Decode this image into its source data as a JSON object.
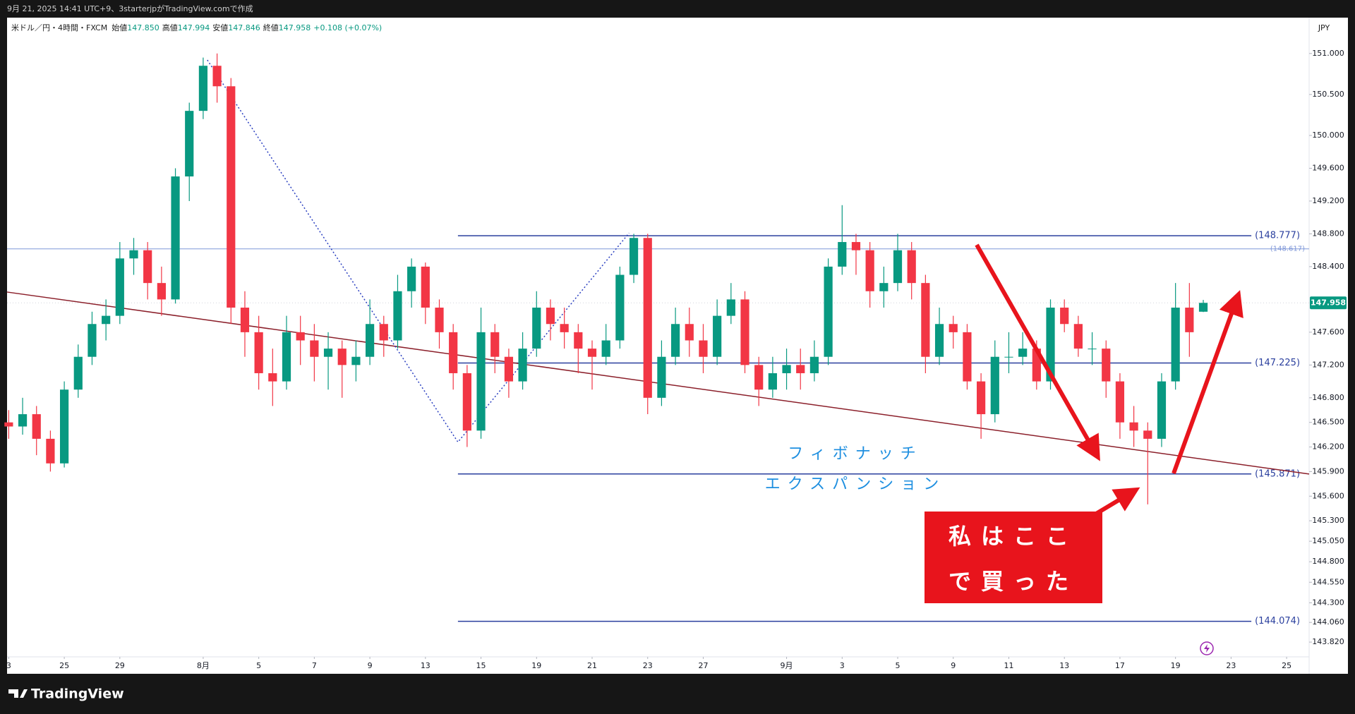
{
  "header": {
    "caption": "9月 21, 2025 14:41 UTC+9、3starterjpがTradingView.comで作成",
    "footer": "TradingView"
  },
  "chart_data": {
    "type": "candlestick",
    "symbol": "米ドル／円・4時間・FXCM",
    "ohlc_legend": [
      {
        "name": "始値",
        "text": "147.850"
      },
      {
        "name": "高値",
        "text": "147.994"
      },
      {
        "name": "安値",
        "text": "147.846"
      },
      {
        "name": "終値",
        "text": "147.958"
      }
    ],
    "change": "+0.108 (+0.07%)",
    "currency": "JPY",
    "up_color": "#089981",
    "down_color": "#f23645",
    "x": [
      0,
      0.5,
      1,
      1.5,
      2,
      2.5,
      3,
      3.5,
      4,
      4.5,
      5,
      5.5,
      6,
      6.5,
      7,
      7.5,
      8,
      8.5,
      9,
      9.5,
      10,
      10.5,
      11,
      11.5,
      12,
      12.5,
      13,
      13.5,
      14,
      14.5,
      15,
      15.5,
      16,
      16.5,
      17,
      17.5,
      18,
      18.5,
      19,
      19.5,
      20,
      20.5,
      21,
      21.5,
      22,
      22.5,
      23,
      23.5,
      24,
      24.5,
      25,
      25.5,
      26,
      26.5,
      27,
      27.5,
      28,
      28.5,
      29,
      29.5,
      30,
      30.5,
      31,
      31.5,
      32,
      32.5,
      33,
      33.5,
      34,
      34.5,
      35,
      35.5,
      36,
      36.5,
      37,
      37.5,
      38,
      38.5,
      39,
      39.5,
      40,
      40.5,
      41,
      41.5,
      42,
      42.5,
      43
    ],
    "open": [
      146.5,
      146.45,
      146.6,
      146.3,
      146.0,
      146.9,
      147.3,
      147.7,
      147.8,
      148.5,
      148.6,
      148.2,
      148.0,
      149.5,
      150.3,
      150.85,
      150.6,
      147.9,
      147.6,
      147.1,
      147.0,
      147.6,
      147.5,
      147.3,
      147.4,
      147.2,
      147.3,
      147.7,
      147.5,
      148.1,
      148.4,
      147.9,
      147.6,
      147.1,
      146.4,
      147.6,
      147.3,
      147.0,
      147.4,
      147.9,
      147.7,
      147.6,
      147.4,
      147.3,
      147.5,
      148.3,
      148.75,
      146.8,
      147.3,
      147.7,
      147.5,
      147.3,
      147.8,
      148.0,
      147.2,
      146.9,
      147.1,
      147.2,
      147.1,
      147.3,
      148.4,
      148.7,
      148.6,
      148.1,
      148.2,
      148.6,
      148.2,
      147.3,
      147.7,
      147.6,
      147.0,
      146.6,
      147.3,
      147.3,
      147.4,
      147.0,
      147.9,
      147.7,
      147.4,
      147.4,
      147.0,
      146.5,
      146.4,
      146.3,
      147.0,
      147.9,
      147.85
    ],
    "high": [
      146.65,
      146.8,
      146.7,
      146.4,
      147.0,
      147.45,
      147.85,
      148.0,
      148.7,
      148.75,
      148.7,
      148.4,
      149.6,
      150.4,
      150.95,
      151.0,
      150.7,
      148.1,
      147.8,
      147.4,
      147.8,
      147.8,
      147.7,
      147.6,
      147.5,
      147.5,
      148.0,
      147.8,
      148.3,
      148.5,
      148.45,
      148.0,
      147.7,
      147.2,
      147.9,
      147.7,
      147.4,
      147.6,
      148.1,
      148.0,
      147.9,
      147.7,
      147.5,
      147.7,
      148.4,
      148.8,
      148.8,
      147.5,
      147.9,
      147.9,
      147.7,
      148.0,
      148.2,
      148.1,
      147.3,
      147.3,
      147.4,
      147.4,
      147.5,
      148.5,
      149.15,
      148.8,
      148.7,
      148.4,
      148.8,
      148.7,
      148.3,
      147.9,
      147.8,
      147.7,
      147.1,
      147.5,
      147.6,
      147.6,
      147.5,
      148.0,
      148.0,
      147.8,
      147.6,
      147.5,
      147.1,
      146.7,
      146.5,
      147.1,
      148.2,
      148.2,
      147.994
    ],
    "low": [
      146.3,
      146.35,
      146.1,
      145.9,
      145.95,
      146.8,
      147.2,
      147.5,
      147.7,
      148.3,
      148.0,
      147.8,
      147.95,
      149.2,
      150.2,
      150.4,
      147.7,
      147.3,
      146.9,
      146.7,
      146.9,
      147.2,
      147.0,
      146.9,
      146.8,
      147.0,
      147.2,
      147.3,
      147.4,
      147.9,
      147.7,
      147.4,
      146.9,
      146.2,
      146.3,
      147.1,
      146.8,
      146.9,
      147.3,
      147.5,
      147.4,
      147.1,
      146.9,
      147.2,
      147.4,
      148.2,
      146.6,
      146.7,
      147.2,
      147.3,
      147.1,
      147.2,
      147.7,
      147.1,
      146.7,
      146.8,
      146.9,
      146.9,
      147.0,
      147.2,
      148.3,
      148.3,
      147.9,
      147.9,
      148.1,
      148.0,
      147.1,
      147.2,
      147.4,
      146.9,
      146.3,
      146.5,
      147.1,
      147.2,
      146.9,
      146.9,
      147.6,
      147.3,
      147.2,
      146.8,
      146.3,
      146.2,
      145.5,
      146.2,
      146.9,
      147.3,
      147.846
    ],
    "close": [
      146.45,
      146.6,
      146.3,
      146.0,
      146.9,
      147.3,
      147.7,
      147.8,
      148.5,
      148.6,
      148.2,
      148.0,
      149.5,
      150.3,
      150.85,
      150.6,
      147.9,
      147.6,
      147.1,
      147.0,
      147.6,
      147.5,
      147.3,
      147.4,
      147.2,
      147.3,
      147.7,
      147.5,
      148.1,
      148.4,
      147.9,
      147.6,
      147.1,
      146.4,
      147.6,
      147.3,
      147.0,
      147.4,
      147.9,
      147.7,
      147.6,
      147.4,
      147.3,
      147.5,
      148.3,
      148.75,
      146.8,
      147.3,
      147.7,
      147.5,
      147.3,
      147.8,
      148.0,
      147.2,
      146.9,
      147.1,
      147.2,
      147.1,
      147.3,
      148.4,
      148.7,
      148.6,
      148.1,
      148.2,
      148.6,
      148.2,
      147.3,
      147.7,
      147.6,
      147.0,
      146.6,
      147.3,
      147.3,
      147.4,
      147.0,
      147.9,
      147.7,
      147.4,
      147.4,
      147.0,
      146.5,
      146.4,
      146.3,
      147.0,
      147.9,
      147.6,
      147.958
    ],
    "xlim": [
      -0.06,
      46.81
    ],
    "ylim": [
      143.64,
      151.42
    ],
    "xticks": [
      {
        "value": 0,
        "label": "3"
      },
      {
        "value": 2,
        "label": "25"
      },
      {
        "value": 4,
        "label": "29"
      },
      {
        "value": 7,
        "label": "8月"
      },
      {
        "value": 9,
        "label": "5"
      },
      {
        "value": 11,
        "label": "7"
      },
      {
        "value": 13,
        "label": "9"
      },
      {
        "value": 15,
        "label": "13"
      },
      {
        "value": 17,
        "label": "15"
      },
      {
        "value": 19,
        "label": "19"
      },
      {
        "value": 21,
        "label": "21"
      },
      {
        "value": 23,
        "label": "23"
      },
      {
        "value": 25,
        "label": "27"
      },
      {
        "value": 28,
        "label": "9月"
      },
      {
        "value": 30,
        "label": "3"
      },
      {
        "value": 32,
        "label": "5"
      },
      {
        "value": 34,
        "label": "9"
      },
      {
        "value": 36,
        "label": "11"
      },
      {
        "value": 38,
        "label": "13"
      },
      {
        "value": 40,
        "label": "17"
      },
      {
        "value": 42,
        "label": "19"
      },
      {
        "value": 44,
        "label": "23"
      },
      {
        "value": 46,
        "label": "25"
      }
    ],
    "yticks": [
      {
        "value": 151,
        "label": "151.000"
      },
      {
        "value": 150.5,
        "label": "150.500"
      },
      {
        "value": 150,
        "label": "150.000"
      },
      {
        "value": 149.6,
        "label": "149.600"
      },
      {
        "value": 149.2,
        "label": "149.200"
      },
      {
        "value": 148.8,
        "label": "148.800"
      },
      {
        "value": 148.4,
        "label": "148.400"
      },
      {
        "value": 147.6,
        "label": "147.600"
      },
      {
        "value": 147.2,
        "label": "147.200"
      },
      {
        "value": 146.8,
        "label": "146.800"
      },
      {
        "value": 146.5,
        "label": "146.500"
      },
      {
        "value": 146.2,
        "label": "146.200"
      },
      {
        "value": 145.9,
        "label": "145.900"
      },
      {
        "value": 145.6,
        "label": "145.600"
      },
      {
        "value": 145.3,
        "label": "145.300"
      },
      {
        "value": 145.05,
        "label": "145.050"
      },
      {
        "value": 144.8,
        "label": "144.800"
      },
      {
        "value": 144.55,
        "label": "144.550"
      },
      {
        "value": 144.3,
        "label": "144.300"
      },
      {
        "value": 144.06,
        "label": "144.060"
      },
      {
        "value": 143.82,
        "label": "143.820"
      }
    ],
    "last_price": 147.958,
    "last_price_color": "#089981",
    "fib_color": "#2a3f9e",
    "fib_x": [
      16.17,
      44.73
    ],
    "fib_levels": [
      {
        "value": 148.777,
        "label": "(148.777)"
      },
      {
        "value": 147.225,
        "label": "(147.225)"
      },
      {
        "value": 145.871,
        "label": "(145.871)"
      },
      {
        "value": 144.074,
        "label": "(144.074)"
      }
    ],
    "hline": {
      "value": 148.617,
      "label": "(148.617)",
      "color": "#7f97d8"
    },
    "trend_line": {
      "x": [
        -0.06,
        46.81
      ],
      "y": [
        148.09,
        145.87
      ],
      "color": "#8b1f2a"
    },
    "fib_path": {
      "x": [
        7.15,
        16.17,
        22.33
      ],
      "y": [
        150.92,
        146.26,
        148.81
      ],
      "color": "#2a3fc0"
    },
    "annotation": [
      "フィボナッチ",
      "エクスパンション"
    ],
    "callout": [
      "私はここ",
      "で買った"
    ]
  }
}
